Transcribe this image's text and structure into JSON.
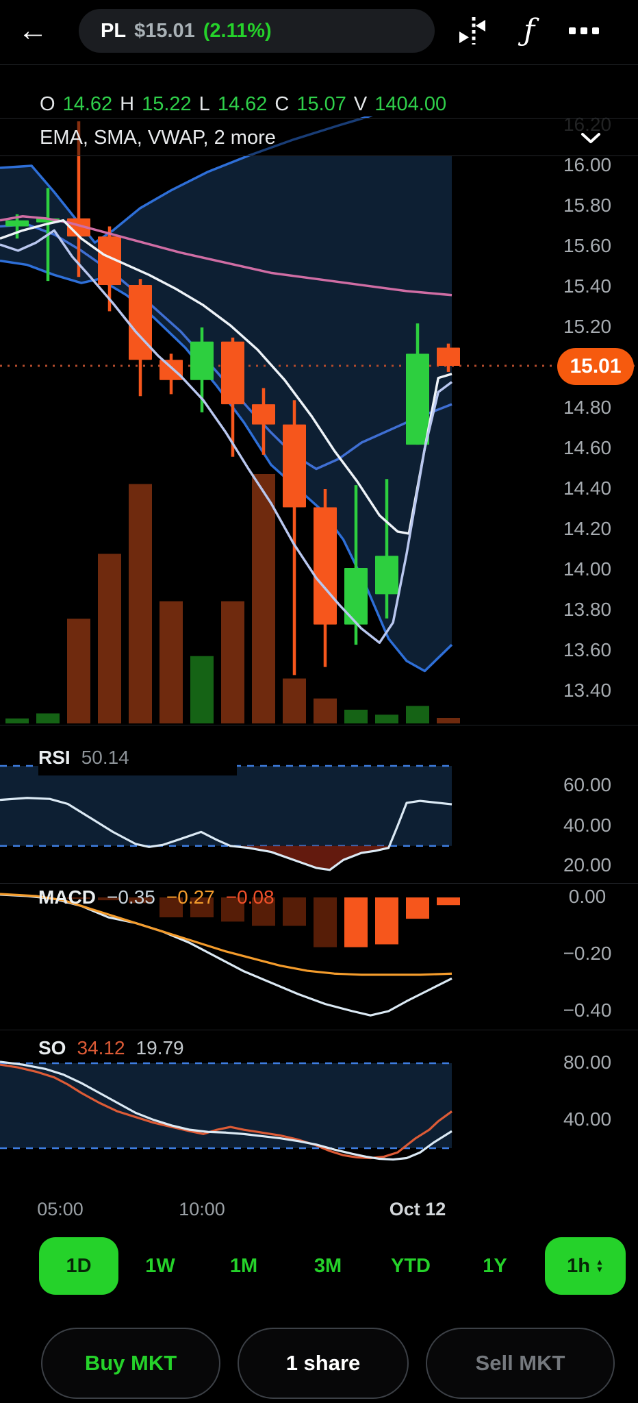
{
  "colors": {
    "accent_green": "#25d22a",
    "candle_up": "#2dcf3f",
    "candle_down": "#f6561c",
    "volume_up": "#156315",
    "volume_down": "#6f2a0e",
    "badge_orange": "#f65a0e",
    "band_navy": "#0d1f33",
    "bollinger_blue": "#2e6fd8",
    "mid_blue": "#3f6fd3",
    "sma_pink": "#cf6da4",
    "ema_white": "#eef3f8",
    "vwap_pale": "#b9c7ef",
    "dashed_blue": "#3e7de0",
    "dotted_price": "#b04a2c",
    "macd_orange": "#f49c2c",
    "macd_hist_dark": "#561d07",
    "rsi_fill_red": "#6e1d10",
    "so_orange": "#dd5b36",
    "panel_line_white": "#dbe9f4"
  },
  "topbar": {
    "symbol": "PL",
    "price": "$15.01",
    "change": "(2.11%)",
    "icons": [
      "back-arrow",
      "compare-candles",
      "function-fx",
      "ellipsis-more"
    ]
  },
  "ohlc": {
    "o_label": "O",
    "o_value": "14.62",
    "h_label": "H",
    "h_value": "15.22",
    "l_label": "L",
    "l_value": "14.62",
    "c_label": "C",
    "c_value": "15.07",
    "v_label": "V",
    "v_value": "1404.00"
  },
  "indicator_bar": {
    "label": "EMA, SMA, VWAP, 2 more"
  },
  "current_price_badge": "15.01",
  "chart_data": {
    "type": "candlestick",
    "symbol": "PL",
    "interval": "1h",
    "current_price": 15.01,
    "main": {
      "y_axis": {
        "labels": [
          "16.20",
          "16.00",
          "15.80",
          "15.60",
          "15.40",
          "15.20",
          "14.80",
          "14.60",
          "14.40",
          "14.20",
          "14.00",
          "13.80",
          "13.60",
          "13.40"
        ],
        "faded_first": true
      },
      "candles": [
        {
          "o": 15.7,
          "h": 15.76,
          "l": 15.64,
          "c": 15.73
        },
        {
          "o": 15.72,
          "h": 15.89,
          "l": 15.43,
          "c": 15.74
        },
        {
          "o": 15.74,
          "h": 16.22,
          "l": 15.45,
          "c": 15.65
        },
        {
          "o": 15.65,
          "h": 15.7,
          "l": 15.28,
          "c": 15.41
        },
        {
          "o": 15.41,
          "h": 15.44,
          "l": 14.86,
          "c": 15.04
        },
        {
          "o": 15.04,
          "h": 15.07,
          "l": 14.87,
          "c": 14.94
        },
        {
          "o": 14.94,
          "h": 15.2,
          "l": 14.78,
          "c": 15.13
        },
        {
          "o": 15.13,
          "h": 15.15,
          "l": 14.56,
          "c": 14.82
        },
        {
          "o": 14.82,
          "h": 14.9,
          "l": 14.57,
          "c": 14.72
        },
        {
          "o": 14.72,
          "h": 14.84,
          "l": 13.48,
          "c": 14.31
        },
        {
          "o": 14.31,
          "h": 14.4,
          "l": 13.52,
          "c": 13.73
        },
        {
          "o": 13.73,
          "h": 14.42,
          "l": 13.63,
          "c": 14.01
        },
        {
          "o": 13.88,
          "h": 14.45,
          "l": 13.76,
          "c": 14.07
        },
        {
          "o": 14.62,
          "h": 15.22,
          "l": 14.62,
          "c": 15.07
        },
        {
          "o": 15.1,
          "h": 15.12,
          "l": 14.98,
          "c": 15.01
        }
      ],
      "volume_fraction": [
        0.02,
        0.04,
        0.42,
        0.68,
        0.96,
        0.49,
        0.27,
        0.49,
        1.0,
        0.18,
        0.1,
        0.055,
        0.035,
        0.07,
        0.022
      ],
      "lines": {
        "bollinger_upper": [
          [
            0,
            15.99
          ],
          [
            0.07,
            16.0
          ],
          [
            0.12,
            15.87
          ],
          [
            0.17,
            15.73
          ],
          [
            0.21,
            15.62
          ],
          [
            0.25,
            15.68
          ],
          [
            0.31,
            15.79
          ],
          [
            0.38,
            15.88
          ],
          [
            0.46,
            15.97
          ],
          [
            0.55,
            16.05
          ],
          [
            0.65,
            16.13
          ],
          [
            0.75,
            16.2
          ],
          [
            0.87,
            16.28
          ],
          [
            1.0,
            16.36
          ]
        ],
        "bollinger_lower": [
          [
            0,
            15.53
          ],
          [
            0.06,
            15.51
          ],
          [
            0.12,
            15.46
          ],
          [
            0.18,
            15.42
          ],
          [
            0.22,
            15.44
          ],
          [
            0.28,
            15.36
          ],
          [
            0.34,
            15.25
          ],
          [
            0.41,
            15.1
          ],
          [
            0.48,
            14.91
          ],
          [
            0.54,
            14.73
          ],
          [
            0.6,
            14.52
          ],
          [
            0.66,
            14.4
          ],
          [
            0.71,
            14.3
          ],
          [
            0.76,
            14.15
          ],
          [
            0.81,
            13.92
          ],
          [
            0.86,
            13.66
          ],
          [
            0.9,
            13.55
          ],
          [
            0.94,
            13.5
          ],
          [
            1.0,
            13.63
          ]
        ],
        "bollinger_mid": [
          [
            0,
            15.7
          ],
          [
            0.06,
            15.71
          ],
          [
            0.12,
            15.66
          ],
          [
            0.18,
            15.58
          ],
          [
            0.25,
            15.47
          ],
          [
            0.32,
            15.34
          ],
          [
            0.4,
            15.18
          ],
          [
            0.48,
            14.98
          ],
          [
            0.55,
            14.8
          ],
          [
            0.6,
            14.68
          ],
          [
            0.65,
            14.57
          ],
          [
            0.7,
            14.5
          ],
          [
            0.75,
            14.55
          ],
          [
            0.8,
            14.63
          ],
          [
            0.86,
            14.69
          ],
          [
            0.92,
            14.75
          ],
          [
            1.0,
            14.82
          ]
        ],
        "sma_pink": [
          [
            0,
            15.73
          ],
          [
            0.05,
            15.75
          ],
          [
            0.1,
            15.74
          ],
          [
            0.15,
            15.72
          ],
          [
            0.2,
            15.69
          ],
          [
            0.3,
            15.63
          ],
          [
            0.4,
            15.57
          ],
          [
            0.5,
            15.52
          ],
          [
            0.6,
            15.47
          ],
          [
            0.7,
            15.44
          ],
          [
            0.8,
            15.41
          ],
          [
            0.9,
            15.38
          ],
          [
            1.0,
            15.36
          ]
        ],
        "ema_white": [
          [
            0,
            15.64
          ],
          [
            0.05,
            15.68
          ],
          [
            0.1,
            15.71
          ],
          [
            0.14,
            15.73
          ],
          [
            0.18,
            15.64
          ],
          [
            0.23,
            15.56
          ],
          [
            0.28,
            15.51
          ],
          [
            0.33,
            15.46
          ],
          [
            0.39,
            15.39
          ],
          [
            0.45,
            15.31
          ],
          [
            0.51,
            15.21
          ],
          [
            0.57,
            15.09
          ],
          [
            0.63,
            14.94
          ],
          [
            0.69,
            14.76
          ],
          [
            0.74,
            14.59
          ],
          [
            0.79,
            14.44
          ],
          [
            0.84,
            14.27
          ],
          [
            0.88,
            14.19
          ],
          [
            0.905,
            14.18
          ],
          [
            0.94,
            14.6
          ],
          [
            0.97,
            14.95
          ],
          [
            1.0,
            14.97
          ]
        ],
        "vwap_pale": [
          [
            0,
            15.61
          ],
          [
            0.04,
            15.58
          ],
          [
            0.08,
            15.62
          ],
          [
            0.12,
            15.68
          ],
          [
            0.16,
            15.55
          ],
          [
            0.2,
            15.45
          ],
          [
            0.25,
            15.32
          ],
          [
            0.3,
            15.18
          ],
          [
            0.35,
            15.06
          ],
          [
            0.4,
            14.96
          ],
          [
            0.45,
            14.84
          ],
          [
            0.5,
            14.68
          ],
          [
            0.55,
            14.5
          ],
          [
            0.6,
            14.33
          ],
          [
            0.65,
            14.13
          ],
          [
            0.7,
            13.96
          ],
          [
            0.75,
            13.83
          ],
          [
            0.8,
            13.71
          ],
          [
            0.84,
            13.64
          ],
          [
            0.87,
            13.74
          ],
          [
            0.9,
            14.08
          ],
          [
            0.94,
            14.6
          ],
          [
            0.97,
            14.88
          ],
          [
            1.0,
            14.93
          ]
        ]
      }
    },
    "rsi": {
      "label": "RSI",
      "value": "50.14",
      "upper_band": 70,
      "lower_band": 30,
      "y_labels": [
        "60.00",
        "40.00",
        "20.00"
      ],
      "series": [
        [
          0,
          53
        ],
        [
          0.06,
          54
        ],
        [
          0.11,
          53.5
        ],
        [
          0.15,
          51
        ],
        [
          0.2,
          44
        ],
        [
          0.25,
          37
        ],
        [
          0.3,
          31
        ],
        [
          0.33,
          29.5
        ],
        [
          0.36,
          30.5
        ],
        [
          0.4,
          33.5
        ],
        [
          0.445,
          37
        ],
        [
          0.48,
          33
        ],
        [
          0.51,
          30
        ],
        [
          0.55,
          29
        ],
        [
          0.6,
          27
        ],
        [
          0.65,
          23
        ],
        [
          0.7,
          19
        ],
        [
          0.73,
          18
        ],
        [
          0.76,
          23
        ],
        [
          0.8,
          26.5
        ],
        [
          0.83,
          27.5
        ],
        [
          0.86,
          29
        ],
        [
          0.88,
          40
        ],
        [
          0.9,
          51.5
        ],
        [
          0.93,
          52.5
        ],
        [
          1.0,
          50.8
        ]
      ]
    },
    "macd": {
      "label": "MACD",
      "values": [
        "−0.35",
        "−0.27",
        "−0.08"
      ],
      "y_labels": [
        "0.00",
        "−0.20",
        "−0.40"
      ],
      "hist": [
        0,
        0,
        -0.005,
        -0.01,
        -0.02,
        -0.07,
        -0.07,
        -0.085,
        -0.1,
        -0.1,
        -0.175,
        -0.175,
        -0.165,
        -0.075,
        -0.027
      ],
      "bright_from": 11,
      "macd_line": [
        [
          0,
          0.01
        ],
        [
          0.06,
          0.005
        ],
        [
          0.12,
          -0.005
        ],
        [
          0.18,
          -0.03
        ],
        [
          0.24,
          -0.07
        ],
        [
          0.3,
          -0.09
        ],
        [
          0.36,
          -0.12
        ],
        [
          0.42,
          -0.16
        ],
        [
          0.48,
          -0.21
        ],
        [
          0.54,
          -0.26
        ],
        [
          0.6,
          -0.3
        ],
        [
          0.66,
          -0.34
        ],
        [
          0.72,
          -0.375
        ],
        [
          0.78,
          -0.4
        ],
        [
          0.82,
          -0.415
        ],
        [
          0.86,
          -0.4
        ],
        [
          0.9,
          -0.365
        ],
        [
          0.95,
          -0.325
        ],
        [
          1.0,
          -0.285
        ]
      ],
      "signal_line": [
        [
          0,
          0.012
        ],
        [
          0.08,
          0.005
        ],
        [
          0.14,
          -0.01
        ],
        [
          0.2,
          -0.04
        ],
        [
          0.26,
          -0.07
        ],
        [
          0.32,
          -0.1
        ],
        [
          0.38,
          -0.13
        ],
        [
          0.44,
          -0.16
        ],
        [
          0.5,
          -0.19
        ],
        [
          0.56,
          -0.215
        ],
        [
          0.62,
          -0.24
        ],
        [
          0.68,
          -0.258
        ],
        [
          0.74,
          -0.268
        ],
        [
          0.8,
          -0.272
        ],
        [
          0.86,
          -0.272
        ],
        [
          0.93,
          -0.272
        ],
        [
          1.0,
          -0.268
        ]
      ]
    },
    "so": {
      "label": "SO",
      "k_value": "34.12",
      "d_value": "19.79",
      "upper_band": 80,
      "lower_band": 20,
      "y_labels": [
        "80.00",
        "40.00"
      ],
      "k_line": [
        [
          0,
          79
        ],
        [
          0.04,
          77
        ],
        [
          0.08,
          74
        ],
        [
          0.12,
          70
        ],
        [
          0.15,
          65
        ],
        [
          0.18,
          59
        ],
        [
          0.22,
          52
        ],
        [
          0.26,
          46
        ],
        [
          0.3,
          42
        ],
        [
          0.34,
          38
        ],
        [
          0.38,
          35
        ],
        [
          0.42,
          32
        ],
        [
          0.45,
          30
        ],
        [
          0.48,
          33
        ],
        [
          0.51,
          35
        ],
        [
          0.54,
          33
        ],
        [
          0.58,
          31
        ],
        [
          0.62,
          29
        ],
        [
          0.66,
          26
        ],
        [
          0.7,
          22
        ],
        [
          0.73,
          18
        ],
        [
          0.76,
          15
        ],
        [
          0.79,
          13.5
        ],
        [
          0.82,
          13
        ],
        [
          0.85,
          14
        ],
        [
          0.88,
          17
        ],
        [
          0.9,
          22
        ],
        [
          0.92,
          27
        ],
        [
          0.95,
          33
        ],
        [
          0.97,
          39
        ],
        [
          1.0,
          46
        ]
      ],
      "d_line": [
        [
          0,
          81
        ],
        [
          0.05,
          79
        ],
        [
          0.1,
          76
        ],
        [
          0.14,
          72
        ],
        [
          0.18,
          66
        ],
        [
          0.22,
          59
        ],
        [
          0.26,
          52
        ],
        [
          0.3,
          45
        ],
        [
          0.34,
          40
        ],
        [
          0.38,
          36
        ],
        [
          0.42,
          33
        ],
        [
          0.46,
          31.5
        ],
        [
          0.5,
          31
        ],
        [
          0.54,
          30
        ],
        [
          0.58,
          28.5
        ],
        [
          0.62,
          27
        ],
        [
          0.66,
          25
        ],
        [
          0.7,
          22.5
        ],
        [
          0.74,
          19
        ],
        [
          0.78,
          16
        ],
        [
          0.81,
          14
        ],
        [
          0.84,
          12.5
        ],
        [
          0.87,
          12
        ],
        [
          0.9,
          13
        ],
        [
          0.93,
          17
        ],
        [
          0.96,
          24
        ],
        [
          1.0,
          32
        ]
      ]
    }
  },
  "x_axis": {
    "labels": [
      {
        "text": "05:00",
        "x": 88,
        "bold": false
      },
      {
        "text": "10:00",
        "x": 295,
        "bold": false
      },
      {
        "text": "Oct 12",
        "x": 610,
        "bold": true
      }
    ]
  },
  "ranges": {
    "items": [
      "1D",
      "1W",
      "1M",
      "3M",
      "YTD",
      "1Y"
    ],
    "selected": "1D",
    "interval": "1h"
  },
  "order_bar": {
    "buy_label": "Buy MKT",
    "quantity_label": "1 share",
    "sell_label": "Sell MKT"
  }
}
